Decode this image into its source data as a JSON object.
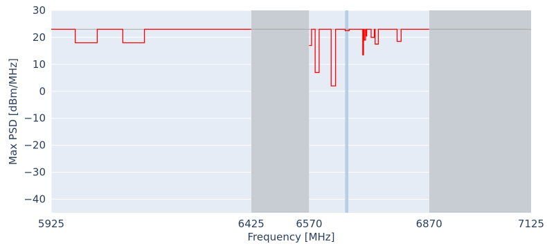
{
  "chart_data": {
    "type": "line",
    "title": "",
    "xlabel": "Frequency [MHz]",
    "ylabel": "Max PSD [dBm/MHz]",
    "xlim": [
      5925,
      7125
    ],
    "ylim": [
      -45,
      30
    ],
    "x_ticks": [
      5925,
      6425,
      6570,
      6870,
      7125
    ],
    "y_ticks": [
      -40,
      -30,
      -20,
      -10,
      0,
      10,
      20,
      30
    ],
    "grid": true,
    "colors": {
      "plot_background": "#e5ecf6",
      "grid": "#ffffff",
      "series_line": "#ff0000",
      "excluded_band": "#c8ccd3",
      "reference_line": "#a8a8a8",
      "highlight_band": "#b4cfe6",
      "tick_text": "#2a3f5f"
    },
    "excluded_bands": [
      {
        "x0": 6425,
        "x1": 6570
      },
      {
        "x0": 6870,
        "x1": 7125
      }
    ],
    "reference_line": {
      "y": 23
    },
    "highlight_band": {
      "x0": 6660,
      "x1": 6668
    },
    "series": [
      {
        "values": [
          [
            5925,
            23
          ],
          [
            5985,
            23
          ],
          [
            5985,
            18
          ],
          [
            6040,
            18
          ],
          [
            6040,
            23
          ],
          [
            6104,
            23
          ],
          [
            6104,
            18
          ],
          [
            6158,
            18
          ],
          [
            6158,
            23
          ],
          [
            6425,
            23
          ],
          [
            6570,
            null
          ],
          [
            6570,
            17
          ],
          [
            6576,
            17
          ],
          [
            6576,
            23
          ],
          [
            6585,
            23
          ],
          [
            6585,
            7
          ],
          [
            6595,
            7
          ],
          [
            6595,
            23
          ],
          [
            6625,
            23
          ],
          [
            6625,
            2
          ],
          [
            6636,
            2
          ],
          [
            6636,
            23
          ],
          [
            6660,
            23
          ],
          [
            6660,
            22.5
          ],
          [
            6670,
            22.5
          ],
          [
            6670,
            23
          ],
          [
            6704,
            23
          ],
          [
            6704,
            13.5
          ],
          [
            6706,
            13.5
          ],
          [
            6706,
            23
          ],
          [
            6708,
            23
          ],
          [
            6708,
            19
          ],
          [
            6711,
            19
          ],
          [
            6711,
            23
          ],
          [
            6712,
            23
          ],
          [
            6712,
            20.5
          ],
          [
            6714,
            20.5
          ],
          [
            6714,
            23
          ],
          [
            6725,
            23
          ],
          [
            6725,
            20
          ],
          [
            6733,
            20
          ],
          [
            6733,
            23
          ],
          [
            6735,
            23
          ],
          [
            6735,
            17.5
          ],
          [
            6743,
            17.5
          ],
          [
            6743,
            23
          ],
          [
            6790,
            23
          ],
          [
            6790,
            18.5
          ],
          [
            6800,
            18.5
          ],
          [
            6800,
            23
          ],
          [
            6870,
            23
          ]
        ]
      }
    ]
  }
}
